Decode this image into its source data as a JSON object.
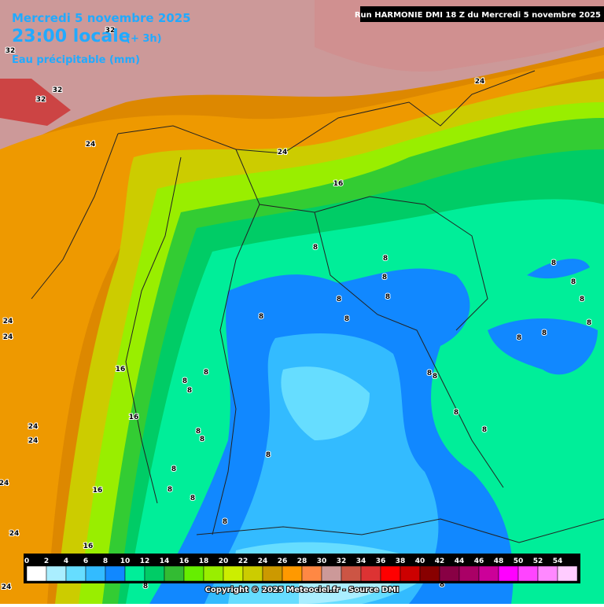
{
  "header": {
    "date": "Mercredi 5 novembre 2025",
    "time": "23:00 locale",
    "offset": "(+ 3h)",
    "parameter": "Eau précipitable (mm)",
    "run": "Run HARMONIE DMI 18 Z du Mercredi 5 novembre 2025"
  },
  "contour_labels": [
    32,
    32,
    32,
    32,
    24,
    24,
    24,
    24,
    24,
    24,
    24,
    24,
    24,
    24,
    16,
    16,
    16,
    16,
    16,
    8,
    8,
    8,
    8,
    8,
    8,
    8,
    8,
    8,
    8,
    8,
    8,
    8,
    8,
    8,
    8,
    8,
    8,
    8,
    8,
    8,
    8,
    8,
    8,
    8,
    8,
    8,
    8,
    8
  ],
  "scale": {
    "labels": [
      0,
      2,
      4,
      6,
      8,
      10,
      12,
      14,
      16,
      18,
      20,
      22,
      24,
      26,
      28,
      30,
      32,
      34,
      36,
      38,
      40,
      42,
      44,
      46,
      48,
      50,
      52,
      54
    ],
    "colors": [
      "#ffffff",
      "#aaeeff",
      "#66ddff",
      "#33bbff",
      "#1188ff",
      "#00ee99",
      "#00cc66",
      "#33bb33",
      "#66ee00",
      "#99ee00",
      "#ccee00",
      "#cccc00",
      "#cc9900",
      "#ff9900",
      "#ff8844",
      "#cc9999",
      "#cc5544",
      "#dd3333",
      "#ff0000",
      "#cc0000",
      "#880000",
      "#880044",
      "#aa0066",
      "#cc0099",
      "#ff00ff",
      "#ff44ff",
      "#ff88ff",
      "#ffccff"
    ]
  },
  "copyright": "Copyright © 2025 Meteociel.fr - Source DMI"
}
